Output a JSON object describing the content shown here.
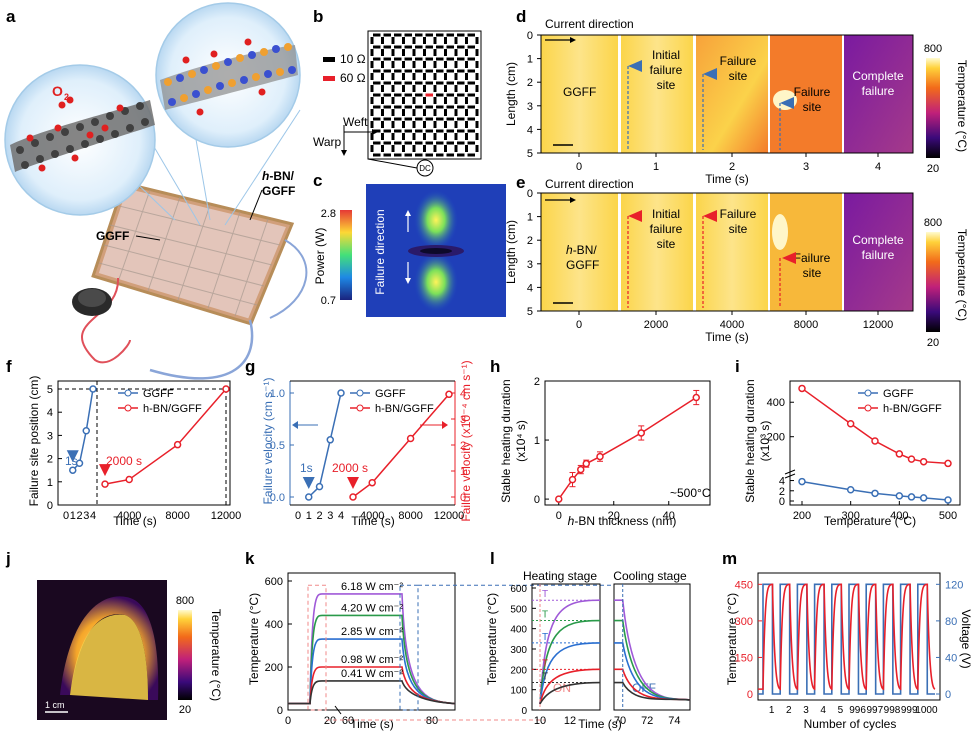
{
  "panels": {
    "a": {
      "label": "a",
      "o2": "O",
      "o2_sub": "2",
      "hbn": "h-BN/",
      "hbn2": "GGFF",
      "ggff": "GGFF",
      "hbn_italic": "h"
    },
    "b": {
      "label": "b",
      "legend": [
        "10 Ω",
        "60 Ω"
      ],
      "weft": "Weft",
      "warp": "Warp",
      "dc": "DC",
      "colors": {
        "normal": "#000000",
        "defect": "#e8202a"
      }
    },
    "c": {
      "label": "c",
      "cbar_title": "Power (W)",
      "cbar_max": "2.8",
      "cbar_min": "0.7",
      "note": "Failure direction"
    },
    "d": {
      "label": "d",
      "current": "Current direction",
      "ylabel": "Length (cm)",
      "xlabel": "Time (s)",
      "yticks": [
        "0",
        "1",
        "2",
        "3",
        "4",
        "5"
      ],
      "xticks": [
        "0",
        "1",
        "2",
        "3",
        "4"
      ],
      "labels": [
        "GGFF",
        "Initial",
        "failure",
        "site",
        "Failure",
        "site",
        "Failure",
        "site",
        "Complete",
        "failure"
      ],
      "cbar_max": "800",
      "cbar_min": "20",
      "cbar_title": "Temperature (°C)"
    },
    "e": {
      "label": "e",
      "current": "Current direction",
      "ylabel": "Length (cm)",
      "xlabel": "Time (s)",
      "yticks": [
        "0",
        "1",
        "2",
        "3",
        "4",
        "5"
      ],
      "xticks": [
        "0",
        "2000",
        "4000",
        "8000",
        "12000"
      ],
      "labels": [
        "h-BN/",
        "GGFF",
        "Initial",
        "failure",
        "site",
        "Failure",
        "site",
        "Failure",
        "site",
        "Complete",
        "failure"
      ],
      "cbar_max": "800",
      "cbar_min": "20",
      "cbar_title": "Temperature (°C)"
    },
    "f": {
      "label": "f",
      "ylabel": "Failure site position (cm)",
      "xlabel": "Time (s)",
      "ann1": "1s",
      "ann2": "2000 s"
    },
    "g": {
      "label": "g",
      "ylabel_left": "Failure velocity (cm s⁻¹)",
      "ylabel_right": "Failure velocity (x10⁻⁴ cm s⁻¹)",
      "xlabel": "Time (s)",
      "ann1": "1s",
      "ann2": "2000 s"
    },
    "h": {
      "label": "h",
      "ylabel": "Stable heating duration",
      "ylabel2": "(x10⁴ s)",
      "xlabel": "h-BN thickness (nm)",
      "note": "~500°C"
    },
    "i": {
      "label": "i",
      "ylabel": "Stable heating duration",
      "ylabel2": "(x10³ s)",
      "xlabel": "Temperature (°C)"
    },
    "j": {
      "label": "j",
      "scale": "1 cm",
      "cbar_max": "800",
      "cbar_min": "20",
      "cbar_title": "Temperature (°C)"
    },
    "k": {
      "label": "k",
      "ylabel": "Temperature (°C)",
      "xlabel": "Time (s)"
    },
    "l": {
      "label": "l",
      "heating": "Heating stage",
      "cooling": "Cooling stage",
      "ylabel": "Temperature (°C)",
      "xlabel": "Time (s)",
      "on": "ON",
      "off": "OFF",
      "ts": "T"
    },
    "m": {
      "label": "m",
      "ylabel_left": "Temperature (°C)",
      "ylabel_right": "Voltage (V)",
      "xlabel": "Number of cycles"
    }
  },
  "chart_data": [
    {
      "id": "f",
      "type": "line",
      "xlabel": "Time (s)",
      "ylabel": "Failure site position (cm)",
      "ylim": [
        0,
        5
      ],
      "yticks": [
        0,
        1,
        2,
        3,
        4,
        5
      ],
      "legend_placement": "top-left",
      "series": [
        {
          "name": "GGFF",
          "color": "#3a6fb5",
          "x": [
            1,
            2,
            3,
            4
          ],
          "y": [
            1.5,
            1.8,
            3.2,
            5.0
          ]
        },
        {
          "name": "h-BN/GGFF",
          "color": "#e8202a",
          "x": [
            2000,
            4000,
            8000,
            12000
          ],
          "y": [
            0.9,
            1.1,
            2.6,
            5.0
          ]
        }
      ],
      "xticks_left": [
        0,
        1,
        2,
        3,
        4
      ],
      "xticks_right": [
        4000,
        8000,
        12000
      ]
    },
    {
      "id": "g",
      "type": "line",
      "xlabel": "Time (s)",
      "ylabel": "Failure velocity (cm s⁻¹)",
      "ylim_left": [
        0,
        1.0
      ],
      "ylim_right": [
        0,
        4
      ],
      "yticks_left": [
        0.0,
        0.5,
        1.0
      ],
      "yticks_right": [
        0,
        1,
        2,
        3,
        4
      ],
      "series": [
        {
          "name": "GGFF",
          "color": "#3a6fb5",
          "x": [
            1,
            2,
            3,
            4
          ],
          "y": [
            0.0,
            0.1,
            0.55,
            1.0
          ]
        },
        {
          "name": "h-BN/GGFF",
          "color": "#e8202a",
          "x": [
            2000,
            4000,
            8000,
            12000
          ],
          "y": [
            0.0,
            0.55,
            2.25,
            3.95
          ]
        }
      ],
      "xticks_left": [
        0,
        1,
        2,
        3,
        4
      ],
      "xticks_right": [
        4000,
        8000,
        12000
      ]
    },
    {
      "id": "h",
      "type": "line",
      "xlabel": "h-BN thickness (nm)",
      "ylabel": "Stable heating duration (x10⁴ s)",
      "xlim": [
        -5,
        55
      ],
      "ylim": [
        -0.1,
        2.0
      ],
      "xticks": [
        0,
        20,
        40
      ],
      "yticks": [
        0,
        1,
        2
      ],
      "series": [
        {
          "color": "#e8202a",
          "x": [
            0,
            5,
            8,
            10,
            15,
            30,
            50
          ],
          "y": [
            0.0,
            0.33,
            0.5,
            0.6,
            0.72,
            1.12,
            1.72
          ],
          "err": [
            0.0,
            0.12,
            0.07,
            0.06,
            0.08,
            0.12,
            0.12
          ]
        }
      ]
    },
    {
      "id": "i",
      "type": "line",
      "xlabel": "Temperature (°C)",
      "ylabel": "Stable heating duration (x10³ s)",
      "xticks": [
        200,
        300,
        400,
        500
      ],
      "yticks_top": [
        200,
        400
      ],
      "yticks_bottom": [
        0,
        2,
        4
      ],
      "legend_placement": "top-right",
      "series": [
        {
          "name": "GGFF",
          "color": "#3a6fb5",
          "x": [
            200,
            300,
            350,
            400,
            425,
            450,
            500
          ],
          "y": [
            3.8,
            2.2,
            1.5,
            1.0,
            0.8,
            0.6,
            0.2
          ]
        },
        {
          "name": "h-BN/GGFF",
          "color": "#e8202a",
          "x": [
            200,
            300,
            350,
            400,
            425,
            450,
            500
          ],
          "y": [
            480,
            275,
            175,
            100,
            70,
            55,
            45
          ]
        }
      ]
    },
    {
      "id": "k",
      "type": "line",
      "xlabel": "Time (s)",
      "ylabel": "Temperature (°C)",
      "ylim": [
        0,
        600
      ],
      "yticks": [
        0,
        200,
        400,
        600
      ],
      "xticks": [
        0,
        20,
        60,
        80
      ],
      "series": [
        {
          "name": "6.18 W cm⁻²",
          "color": "#a05ad8",
          "plateau": 540
        },
        {
          "name": "4.20 W cm⁻²",
          "color": "#2a9a4a",
          "plateau": 440
        },
        {
          "name": "2.85 W cm⁻²",
          "color": "#2a6fd0",
          "plateau": 330
        },
        {
          "name": "0.98 W cm⁻²",
          "color": "#e8202a",
          "plateau": 200
        },
        {
          "name": "0.41 W cm⁻²",
          "color": "#333333",
          "plateau": 135
        }
      ]
    },
    {
      "id": "l",
      "type": "line",
      "xlabel": "Time (s)",
      "ylabel": "Temperature (°C)",
      "ylim": [
        0,
        600
      ],
      "yticks": [
        0,
        100,
        200,
        300,
        400,
        500,
        600
      ],
      "xticks_heating": [
        10,
        12
      ],
      "xticks_cooling": [
        70,
        72,
        74
      ]
    },
    {
      "id": "m",
      "type": "line",
      "xlabel": "Number of cycles",
      "ylabel": "Temperature (°C)",
      "ylim_left": [
        0,
        450
      ],
      "yticks_left": [
        0,
        150,
        300,
        450
      ],
      "ylim_right": [
        0,
        120
      ],
      "yticks_right": [
        0,
        40,
        80,
        120
      ],
      "xticks": [
        "1",
        "2",
        "3",
        "4",
        "5",
        "996",
        "997",
        "998",
        "999",
        "1000"
      ]
    }
  ]
}
